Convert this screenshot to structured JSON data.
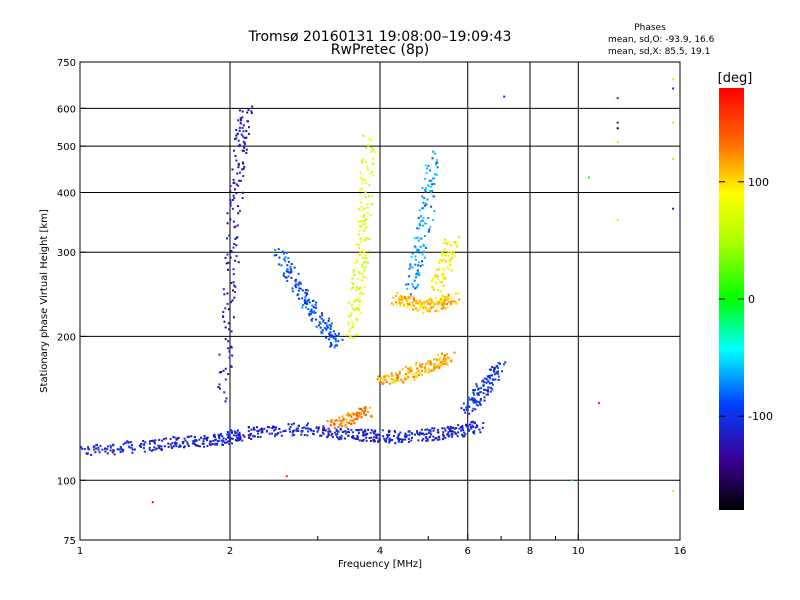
{
  "chart_data": {
    "type": "scatter",
    "title": "Tromsø 20160131 19:08:00–19:09:43",
    "subtitle": "RwPretec (8p)",
    "xlabel": "Frequency [MHz]",
    "ylabel": "Stationary phase Virtual Height [km]",
    "x_scale": "log",
    "y_scale": "log",
    "xlim": [
      1,
      16
    ],
    "ylim": [
      75,
      750
    ],
    "grid": true,
    "x_ticks": [
      1,
      2,
      4,
      6,
      8,
      10,
      16
    ],
    "x_tick_labels": [
      "1",
      "2",
      "4",
      "6",
      "8",
      "10",
      "16"
    ],
    "x_minor_ticks": [
      3,
      5,
      7,
      9
    ],
    "y_ticks": [
      75,
      100,
      200,
      300,
      400,
      500,
      600,
      750
    ],
    "y_tick_labels": [
      "75",
      "100",
      "200",
      "300",
      "400",
      "500",
      "600",
      "750"
    ],
    "phase_stats": {
      "heading": "Phases",
      "o_line": "mean, sd,O: -93.9, 16.6",
      "x_line": "mean, sd,X: 85.5, 19.1"
    },
    "colorbar": {
      "label": "[deg]",
      "min": -180,
      "max": 180,
      "ticks": [
        100,
        0,
        -100
      ],
      "tick_labels": [
        "100",
        "0",
        "-100"
      ],
      "colormap": "rainbow"
    },
    "traces": [
      {
        "x": [
          1.0,
          1.2,
          1.4,
          1.6,
          1.8,
          1.95,
          2.1,
          2.4,
          2.8,
          3.2,
          3.6,
          3.9,
          4.3,
          4.8,
          5.3,
          5.8,
          6.3
        ],
        "y": [
          115,
          117,
          118,
          120,
          121,
          122,
          124,
          127,
          128,
          126,
          124,
          124,
          123,
          124,
          125,
          127,
          130
        ],
        "phase": -110
      },
      {
        "x": [
          1.95,
          2.0,
          2.05,
          2.1,
          2.15
        ],
        "y": [
          150,
          250,
          380,
          500,
          600
        ],
        "phase": -120
      },
      {
        "x": [
          2.5,
          2.7,
          2.9,
          3.1,
          3.3
        ],
        "y": [
          300,
          260,
          230,
          210,
          190
        ],
        "phase": -90
      },
      {
        "x": [
          3.5,
          3.6,
          3.7,
          3.75,
          3.8
        ],
        "y": [
          200,
          250,
          300,
          380,
          520
        ],
        "phase": 70
      },
      {
        "x": [
          3.2,
          3.5,
          3.8
        ],
        "y": [
          130,
          135,
          140
        ],
        "phase": 130
      },
      {
        "x": [
          4.3,
          4.6,
          5.0,
          5.3,
          5.6
        ],
        "y": [
          240,
          235,
          230,
          235,
          240
        ],
        "phase": 110
      },
      {
        "x": [
          4.0,
          4.4,
          4.8,
          5.2,
          5.5
        ],
        "y": [
          160,
          165,
          170,
          175,
          180
        ],
        "phase": 115
      },
      {
        "x": [
          4.6,
          4.8,
          5.0,
          5.1
        ],
        "y": [
          250,
          300,
          380,
          480
        ],
        "phase": -70
      },
      {
        "x": [
          5.2,
          5.4,
          5.6
        ],
        "y": [
          250,
          280,
          320
        ],
        "phase": 90
      },
      {
        "x": [
          6.0,
          6.3,
          6.6,
          7.0
        ],
        "y": [
          140,
          150,
          160,
          175
        ],
        "phase": -100
      }
    ],
    "fliers": [
      {
        "x": 1.4,
        "y": 90,
        "phase": 175
      },
      {
        "x": 7.1,
        "y": 635,
        "phase": -100
      },
      {
        "x": 12.0,
        "y": 630,
        "phase": -100
      },
      {
        "x": 12.0,
        "y": 560,
        "phase": -130
      },
      {
        "x": 12.0,
        "y": 545,
        "phase": -170
      },
      {
        "x": 12.0,
        "y": 510,
        "phase": 100
      },
      {
        "x": 12.0,
        "y": 350,
        "phase": 100
      },
      {
        "x": 15.5,
        "y": 690,
        "phase": 100
      },
      {
        "x": 15.5,
        "y": 660,
        "phase": -100
      },
      {
        "x": 15.5,
        "y": 560,
        "phase": 100
      },
      {
        "x": 15.5,
        "y": 470,
        "phase": 100
      },
      {
        "x": 15.5,
        "y": 370,
        "phase": -120
      },
      {
        "x": 15.5,
        "y": 95,
        "phase": 100
      },
      {
        "x": 10.5,
        "y": 430,
        "phase": -10
      },
      {
        "x": 11.0,
        "y": 145,
        "phase": 170
      },
      {
        "x": 9.7,
        "y": 100,
        "phase": -10
      },
      {
        "x": 2.6,
        "y": 102,
        "phase": 160
      }
    ]
  }
}
